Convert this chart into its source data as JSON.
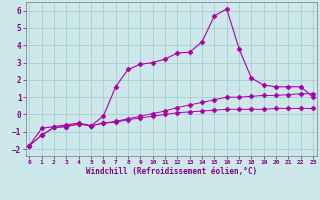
{
  "xlabel": "Windchill (Refroidissement éolien,°C)",
  "bg_color": "#cce8ea",
  "grid_color": "#aacdd0",
  "line_color": "#aa00aa",
  "spine_color": "#888899",
  "x_values": [
    0,
    1,
    2,
    3,
    4,
    5,
    6,
    7,
    8,
    9,
    10,
    11,
    12,
    13,
    14,
    15,
    16,
    17,
    18,
    19,
    20,
    21,
    22,
    23
  ],
  "series1": [
    -1.8,
    -1.2,
    -0.75,
    -0.7,
    -0.55,
    -0.65,
    -0.5,
    -0.45,
    -0.3,
    -0.2,
    -0.1,
    0.0,
    0.1,
    0.15,
    0.2,
    0.25,
    0.3,
    0.3,
    0.3,
    0.3,
    0.35,
    0.35,
    0.35,
    0.35
  ],
  "series2": [
    -1.8,
    -1.2,
    -0.75,
    -0.7,
    -0.55,
    -0.65,
    -0.5,
    -0.4,
    -0.25,
    -0.1,
    0.05,
    0.2,
    0.4,
    0.55,
    0.7,
    0.85,
    1.0,
    1.0,
    1.05,
    1.1,
    1.1,
    1.15,
    1.2,
    1.2
  ],
  "series3": [
    -1.8,
    -0.8,
    -0.7,
    -0.6,
    -0.5,
    -0.65,
    -0.1,
    1.6,
    2.6,
    2.9,
    3.0,
    3.2,
    3.55,
    3.6,
    4.2,
    5.7,
    6.1,
    3.8,
    2.1,
    1.7,
    1.6,
    1.6,
    1.6,
    1.0
  ],
  "ylim": [
    -2.4,
    6.5
  ],
  "yticks": [
    -2,
    -1,
    0,
    1,
    2,
    3,
    4,
    5,
    6
  ],
  "xticks": [
    0,
    1,
    2,
    3,
    4,
    5,
    6,
    7,
    8,
    9,
    10,
    11,
    12,
    13,
    14,
    15,
    16,
    17,
    18,
    19,
    20,
    21,
    22,
    23
  ],
  "tick_color": "#880088",
  "label_color": "#880088"
}
